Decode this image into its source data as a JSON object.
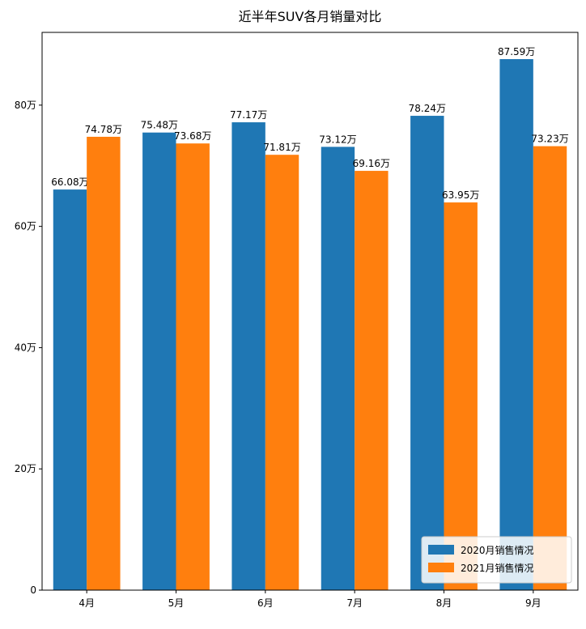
{
  "chart_data": {
    "type": "bar",
    "title": "近半年SUV各月销量对比",
    "categories": [
      "4月",
      "5月",
      "6月",
      "7月",
      "8月",
      "9月"
    ],
    "series": [
      {
        "name": "2020月销售情况",
        "color": "#1f77b4",
        "values": [
          66.08,
          75.48,
          77.17,
          73.12,
          78.24,
          87.59
        ],
        "labels": [
          "66.08万",
          "75.48万",
          "77.17万",
          "73.12万",
          "78.24万",
          "87.59万"
        ]
      },
      {
        "name": "2021月销售情况",
        "color": "#ff7f0e",
        "values": [
          74.78,
          73.68,
          71.81,
          69.16,
          63.95,
          73.23
        ],
        "labels": [
          "74.78万",
          "73.68万",
          "71.81万",
          "69.16万",
          "63.95万",
          "73.23万"
        ]
      }
    ],
    "y_ticks": [
      0,
      20,
      40,
      60,
      80
    ],
    "y_tick_labels": [
      "0",
      "20万",
      "40万",
      "60万",
      "80万"
    ],
    "ylim": [
      0,
      92
    ],
    "legend_position": "lower-right",
    "grid": false,
    "xlabel": "",
    "ylabel": ""
  }
}
